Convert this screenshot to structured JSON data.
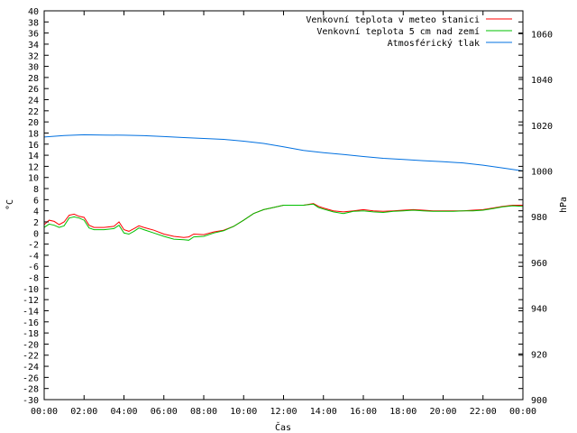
{
  "chart_data": {
    "type": "line",
    "xlabel": "Čas",
    "ylabel": "°C",
    "y2label": "hPa",
    "xlim": [
      0,
      24
    ],
    "ylim": [
      -30,
      40
    ],
    "y2lim": [
      900,
      1070
    ],
    "x_tick_labels": [
      "00:00",
      "02:00",
      "04:00",
      "06:00",
      "08:00",
      "10:00",
      "12:00",
      "14:00",
      "16:00",
      "18:00",
      "20:00",
      "22:00",
      "00:00"
    ],
    "y_ticks": [
      40,
      38,
      36,
      34,
      32,
      30,
      28,
      26,
      24,
      22,
      20,
      18,
      16,
      14,
      12,
      10,
      8,
      6,
      4,
      2,
      0,
      -2,
      -4,
      -6,
      -8,
      -10,
      -12,
      -14,
      -16,
      -18,
      -20,
      -22,
      -24,
      -26,
      -28,
      -30
    ],
    "y2_ticks": [
      1060,
      1040,
      1020,
      1000,
      980,
      960,
      940,
      920,
      900
    ],
    "legend_position": "top-right",
    "grid": false,
    "series": [
      {
        "name": "Venkovní teplota v meteo stanici",
        "color": "#ff0000",
        "axis": "y1",
        "x": [
          0,
          0.25,
          0.5,
          0.75,
          1,
          1.25,
          1.5,
          1.75,
          2,
          2.25,
          2.5,
          3,
          3.5,
          3.75,
          4,
          4.25,
          4.5,
          4.75,
          5,
          5.5,
          6,
          6.5,
          7,
          7.25,
          7.5,
          8,
          8.5,
          9,
          9.5,
          10,
          10.5,
          11,
          11.5,
          12,
          12.5,
          13,
          13.5,
          13.75,
          14,
          14.5,
          15,
          15.5,
          16,
          16.5,
          17,
          17.5,
          18,
          18.5,
          19,
          19.5,
          20,
          20.5,
          21,
          21.5,
          22,
          22.5,
          23,
          23.5,
          24
        ],
        "y": [
          1.5,
          2.3,
          2.1,
          1.5,
          2.0,
          3.2,
          3.4,
          3.0,
          2.8,
          1.4,
          1.0,
          1.0,
          1.2,
          2.0,
          0.6,
          0.3,
          0.8,
          1.3,
          1.0,
          0.5,
          -0.2,
          -0.6,
          -0.8,
          -0.7,
          -0.2,
          -0.3,
          0.2,
          0.5,
          1.2,
          2.3,
          3.5,
          4.2,
          4.6,
          5.0,
          5.0,
          5.0,
          5.3,
          4.8,
          4.5,
          4.0,
          3.8,
          4.0,
          4.2,
          4.0,
          3.9,
          4.0,
          4.1,
          4.2,
          4.1,
          4.0,
          4.0,
          4.0,
          4.0,
          4.1,
          4.2,
          4.5,
          4.8,
          5.0,
          5.0
        ]
      },
      {
        "name": "Venkovní teplota 5 cm nad zemí",
        "color": "#00c000",
        "axis": "y1",
        "x": [
          0,
          0.25,
          0.5,
          0.75,
          1,
          1.25,
          1.5,
          1.75,
          2,
          2.25,
          2.5,
          3,
          3.5,
          3.75,
          4,
          4.25,
          4.5,
          4.75,
          5,
          5.5,
          6,
          6.5,
          7,
          7.25,
          7.5,
          8,
          8.5,
          9,
          9.5,
          10,
          10.5,
          11,
          11.5,
          12,
          12.5,
          13,
          13.5,
          13.75,
          14,
          14.5,
          15,
          15.5,
          16,
          16.5,
          17,
          17.5,
          18,
          18.5,
          19,
          19.5,
          20,
          20.5,
          21,
          21.5,
          22,
          22.5,
          23,
          23.5,
          24
        ],
        "y": [
          1.0,
          1.6,
          1.4,
          1.0,
          1.3,
          2.7,
          2.9,
          2.7,
          2.3,
          0.9,
          0.6,
          0.6,
          0.8,
          1.4,
          0.0,
          -0.2,
          0.3,
          0.9,
          0.6,
          0.0,
          -0.6,
          -1.1,
          -1.2,
          -1.3,
          -0.7,
          -0.6,
          0.0,
          0.4,
          1.2,
          2.3,
          3.5,
          4.2,
          4.6,
          5.0,
          5.0,
          5.0,
          5.2,
          4.6,
          4.3,
          3.8,
          3.5,
          3.9,
          4.0,
          3.8,
          3.7,
          3.9,
          4.0,
          4.1,
          4.0,
          3.9,
          3.9,
          3.9,
          4.0,
          4.0,
          4.1,
          4.4,
          4.7,
          4.9,
          4.8
        ]
      },
      {
        "name": "Atmosférický tlak",
        "color": "#0070e0",
        "axis": "y2",
        "x": [
          0,
          1,
          2,
          3,
          4,
          5,
          6,
          7,
          8,
          9,
          10,
          11,
          12,
          13,
          14,
          15,
          16,
          17,
          18,
          19,
          20,
          21,
          22,
          23,
          24
        ],
        "y": [
          1014.8,
          1015.5,
          1015.8,
          1015.7,
          1015.6,
          1015.4,
          1015.0,
          1014.6,
          1014.2,
          1013.8,
          1013.0,
          1012.0,
          1010.5,
          1009.0,
          1008.0,
          1007.2,
          1006.3,
          1005.5,
          1005.0,
          1004.5,
          1004.0,
          1003.5,
          1002.5,
          1001.3,
          1000.0
        ]
      }
    ]
  }
}
